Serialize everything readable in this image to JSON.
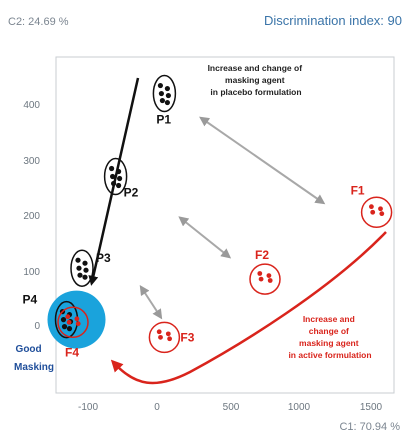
{
  "header": {
    "c2_label": "C2: 24.69 %",
    "title": "Discrimination index: 90"
  },
  "chart_data": {
    "type": "scatter",
    "xlabel": "C1: 70.94 %",
    "ylabel": "C2: 24.69 %",
    "xlim": [
      -200,
      1650
    ],
    "ylim": [
      -110,
      490
    ],
    "x_ticks": [
      -100,
      0,
      500,
      1000,
      1500
    ],
    "y_ticks": [
      0,
      100,
      200,
      300,
      400
    ],
    "x_tick_labels": [
      "-100",
      "0",
      "500",
      "1000",
      "1500"
    ],
    "y_tick_labels": [
      "0",
      "100",
      "200",
      "300",
      "400"
    ],
    "grid": false,
    "placebo_color": "#111111",
    "active_color": "#d9241c",
    "good_masking_color": "#1aa3dc",
    "groups": [
      {
        "label": "P1",
        "kind": "placebo",
        "center": [
          50,
          420
        ]
      },
      {
        "label": "P2",
        "kind": "placebo",
        "center": [
          -60,
          270
        ]
      },
      {
        "label": "P3",
        "kind": "placebo",
        "center": [
          -120,
          105
        ]
      },
      {
        "label": "P4",
        "kind": "placebo",
        "center": [
          -185,
          10
        ]
      },
      {
        "label": "F1",
        "kind": "active",
        "center": [
          1540,
          205
        ]
      },
      {
        "label": "F2",
        "kind": "active",
        "center": [
          750,
          85
        ]
      },
      {
        "label": "F3",
        "kind": "active",
        "center": [
          50,
          -20
        ]
      },
      {
        "label": "F4",
        "kind": "active",
        "center": [
          -150,
          5
        ]
      }
    ],
    "annotations": {
      "placebo": "Increase and change of masking agent in placebo formulation",
      "active": "Increase and change of masking agent in active formulation",
      "good_masking": "Good Masking"
    },
    "placebo_annotation_lines": [
      "Increase and change of",
      "masking agent",
      "in placebo formulation"
    ],
    "active_annotation_lines": [
      "Increase and",
      "change of",
      "masking agent",
      "in active formulation"
    ],
    "good_masking_lines": [
      "Good",
      "Masking"
    ]
  }
}
